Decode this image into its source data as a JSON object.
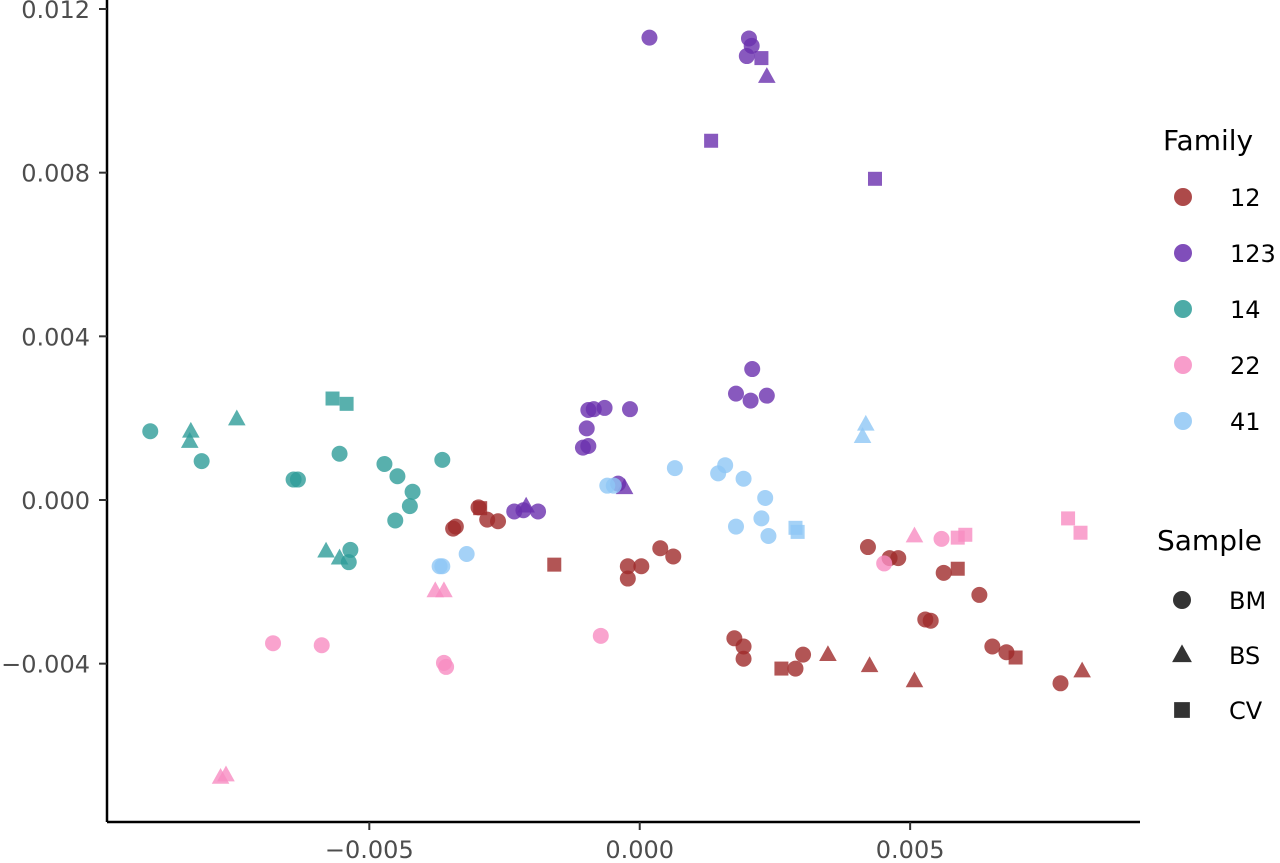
{
  "chart_data": {
    "type": "scatter",
    "title": "",
    "xlabel": "",
    "ylabel": "",
    "xlim": [
      -0.00985,
      0.00925
    ],
    "ylim": [
      -0.00787,
      0.01222
    ],
    "x_ticks": [
      -0.005,
      0.0,
      0.005
    ],
    "x_tick_labels": [
      "−0.005",
      "0.000",
      "0.005"
    ],
    "y_ticks": [
      -0.004,
      0.0,
      0.004,
      0.008,
      0.012
    ],
    "y_tick_labels": [
      "−0.004",
      "0.000",
      "0.004",
      "0.008",
      "0.012"
    ],
    "grid": false,
    "legend_position": "right",
    "legends": {
      "family": {
        "title": "Family",
        "items": [
          {
            "label": "12",
            "color": "#9f2a2a"
          },
          {
            "label": "123",
            "color": "#6a2fae"
          },
          {
            "label": "14",
            "color": "#2e9c98"
          },
          {
            "label": "22",
            "color": "#f78cc2"
          },
          {
            "label": "41",
            "color": "#8fc7f5"
          }
        ]
      },
      "sample": {
        "title": "Sample",
        "items": [
          {
            "label": "BM",
            "shape": "circle"
          },
          {
            "label": "BS",
            "shape": "triangle"
          },
          {
            "label": "CV",
            "shape": "square"
          }
        ]
      }
    },
    "points": [
      {
        "x": -0.00905,
        "y": 0.00168,
        "family": "14",
        "sample": "BM"
      },
      {
        "x": -0.0081,
        "y": 0.00095,
        "family": "14",
        "sample": "BM"
      },
      {
        "x": -0.0064,
        "y": 0.0005,
        "family": "14",
        "sample": "BM"
      },
      {
        "x": -0.00632,
        "y": 0.0005,
        "family": "14",
        "sample": "BM"
      },
      {
        "x": -0.00555,
        "y": 0.00113,
        "family": "14",
        "sample": "BM"
      },
      {
        "x": -0.00472,
        "y": 0.00088,
        "family": "14",
        "sample": "BM"
      },
      {
        "x": -0.00448,
        "y": 0.00058,
        "family": "14",
        "sample": "BM"
      },
      {
        "x": -0.0042,
        "y": 0.0002,
        "family": "14",
        "sample": "BM"
      },
      {
        "x": -0.00425,
        "y": -0.00015,
        "family": "14",
        "sample": "BM"
      },
      {
        "x": -0.00452,
        "y": -0.0005,
        "family": "14",
        "sample": "BM"
      },
      {
        "x": -0.00365,
        "y": 0.00098,
        "family": "14",
        "sample": "BM"
      },
      {
        "x": -0.00535,
        "y": -0.00122,
        "family": "14",
        "sample": "BM"
      },
      {
        "x": -0.00538,
        "y": -0.00152,
        "family": "14",
        "sample": "BM"
      },
      {
        "x": -0.0083,
        "y": 0.00168,
        "family": "14",
        "sample": "BS"
      },
      {
        "x": -0.00832,
        "y": 0.00143,
        "family": "14",
        "sample": "BS"
      },
      {
        "x": -0.00745,
        "y": 0.00198,
        "family": "14",
        "sample": "BS"
      },
      {
        "x": -0.0058,
        "y": -0.00125,
        "family": "14",
        "sample": "BS"
      },
      {
        "x": -0.00555,
        "y": -0.00142,
        "family": "14",
        "sample": "BS"
      },
      {
        "x": -0.00568,
        "y": 0.00248,
        "family": "14",
        "sample": "CV"
      },
      {
        "x": -0.00542,
        "y": 0.00235,
        "family": "14",
        "sample": "CV"
      },
      {
        "x": 0.00018,
        "y": 0.0113,
        "family": "123",
        "sample": "BM"
      },
      {
        "x": 0.00202,
        "y": 0.01128,
        "family": "123",
        "sample": "BM"
      },
      {
        "x": 0.00207,
        "y": 0.0111,
        "family": "123",
        "sample": "BM"
      },
      {
        "x": 0.00198,
        "y": 0.01085,
        "family": "123",
        "sample": "BM"
      },
      {
        "x": -0.00095,
        "y": 0.0022,
        "family": "123",
        "sample": "BM"
      },
      {
        "x": -0.00085,
        "y": 0.00222,
        "family": "123",
        "sample": "BM"
      },
      {
        "x": -0.00065,
        "y": 0.00225,
        "family": "123",
        "sample": "BM"
      },
      {
        "x": -0.00018,
        "y": 0.00222,
        "family": "123",
        "sample": "BM"
      },
      {
        "x": -0.00098,
        "y": 0.00175,
        "family": "123",
        "sample": "BM"
      },
      {
        "x": -0.00105,
        "y": 0.00128,
        "family": "123",
        "sample": "BM"
      },
      {
        "x": -0.00095,
        "y": 0.00132,
        "family": "123",
        "sample": "BM"
      },
      {
        "x": 0.00178,
        "y": 0.0026,
        "family": "123",
        "sample": "BM"
      },
      {
        "x": 0.00208,
        "y": 0.0032,
        "family": "123",
        "sample": "BM"
      },
      {
        "x": 0.00205,
        "y": 0.00243,
        "family": "123",
        "sample": "BM"
      },
      {
        "x": 0.00235,
        "y": 0.00255,
        "family": "123",
        "sample": "BM"
      },
      {
        "x": -0.00232,
        "y": -0.00028,
        "family": "123",
        "sample": "BM"
      },
      {
        "x": -0.00215,
        "y": -0.00025,
        "family": "123",
        "sample": "BM"
      },
      {
        "x": -0.00188,
        "y": -0.00028,
        "family": "123",
        "sample": "BM"
      },
      {
        "x": -0.0004,
        "y": 0.0004,
        "family": "123",
        "sample": "BM"
      },
      {
        "x": 0.00235,
        "y": 0.01035,
        "family": "123",
        "sample": "BS"
      },
      {
        "x": -0.0021,
        "y": -0.00015,
        "family": "123",
        "sample": "BS"
      },
      {
        "x": -0.00028,
        "y": 0.0003,
        "family": "123",
        "sample": "BS"
      },
      {
        "x": 0.00225,
        "y": 0.0108,
        "family": "123",
        "sample": "CV"
      },
      {
        "x": 0.00132,
        "y": 0.00878,
        "family": "123",
        "sample": "CV"
      },
      {
        "x": 0.00435,
        "y": 0.00785,
        "family": "123",
        "sample": "CV"
      },
      {
        "x": -0.0034,
        "y": -0.00065,
        "family": "12",
        "sample": "BM"
      },
      {
        "x": -0.00345,
        "y": -0.0007,
        "family": "12",
        "sample": "BM"
      },
      {
        "x": -0.00298,
        "y": -0.00018,
        "family": "12",
        "sample": "BM"
      },
      {
        "x": -0.00282,
        "y": -0.00048,
        "family": "12",
        "sample": "BM"
      },
      {
        "x": -0.00262,
        "y": -0.00052,
        "family": "12",
        "sample": "BM"
      },
      {
        "x": -0.00022,
        "y": -0.00162,
        "family": "12",
        "sample": "BM"
      },
      {
        "x": -0.00022,
        "y": -0.00192,
        "family": "12",
        "sample": "BM"
      },
      {
        "x": 3e-05,
        "y": -0.00162,
        "family": "12",
        "sample": "BM"
      },
      {
        "x": 0.00038,
        "y": -0.00118,
        "family": "12",
        "sample": "BM"
      },
      {
        "x": 0.00062,
        "y": -0.00138,
        "family": "12",
        "sample": "BM"
      },
      {
        "x": 0.00175,
        "y": -0.00338,
        "family": "12",
        "sample": "BM"
      },
      {
        "x": 0.00192,
        "y": -0.00358,
        "family": "12",
        "sample": "BM"
      },
      {
        "x": 0.00192,
        "y": -0.00388,
        "family": "12",
        "sample": "BM"
      },
      {
        "x": 0.00288,
        "y": -0.00412,
        "family": "12",
        "sample": "BM"
      },
      {
        "x": 0.00302,
        "y": -0.00378,
        "family": "12",
        "sample": "BM"
      },
      {
        "x": 0.00422,
        "y": -0.00115,
        "family": "12",
        "sample": "BM"
      },
      {
        "x": 0.00462,
        "y": -0.00142,
        "family": "12",
        "sample": "BM"
      },
      {
        "x": 0.00478,
        "y": -0.00142,
        "family": "12",
        "sample": "BM"
      },
      {
        "x": 0.00528,
        "y": -0.00292,
        "family": "12",
        "sample": "BM"
      },
      {
        "x": 0.00538,
        "y": -0.00295,
        "family": "12",
        "sample": "BM"
      },
      {
        "x": 0.00562,
        "y": -0.00178,
        "family": "12",
        "sample": "BM"
      },
      {
        "x": 0.00628,
        "y": -0.00232,
        "family": "12",
        "sample": "BM"
      },
      {
        "x": 0.00652,
        "y": -0.00358,
        "family": "12",
        "sample": "BM"
      },
      {
        "x": 0.00678,
        "y": -0.00372,
        "family": "12",
        "sample": "BM"
      },
      {
        "x": 0.00778,
        "y": -0.00448,
        "family": "12",
        "sample": "BM"
      },
      {
        "x": 0.00348,
        "y": -0.00378,
        "family": "12",
        "sample": "BS"
      },
      {
        "x": 0.00425,
        "y": -0.00405,
        "family": "12",
        "sample": "BS"
      },
      {
        "x": 0.00508,
        "y": -0.00442,
        "family": "12",
        "sample": "BS"
      },
      {
        "x": 0.00818,
        "y": -0.00418,
        "family": "12",
        "sample": "BS"
      },
      {
        "x": -0.00295,
        "y": -0.0002,
        "family": "12",
        "sample": "CV"
      },
      {
        "x": -0.00158,
        "y": -0.00158,
        "family": "12",
        "sample": "CV"
      },
      {
        "x": 0.00262,
        "y": -0.00412,
        "family": "12",
        "sample": "CV"
      },
      {
        "x": 0.00588,
        "y": -0.00168,
        "family": "12",
        "sample": "CV"
      },
      {
        "x": 0.00695,
        "y": -0.00385,
        "family": "12",
        "sample": "CV"
      },
      {
        "x": -0.00678,
        "y": -0.0035,
        "family": "22",
        "sample": "BM"
      },
      {
        "x": -0.00588,
        "y": -0.00355,
        "family": "22",
        "sample": "BM"
      },
      {
        "x": -0.00358,
        "y": -0.00408,
        "family": "22",
        "sample": "BM"
      },
      {
        "x": -0.00362,
        "y": -0.00398,
        "family": "22",
        "sample": "BM"
      },
      {
        "x": -0.00072,
        "y": -0.00332,
        "family": "22",
        "sample": "BM"
      },
      {
        "x": 0.00452,
        "y": -0.00155,
        "family": "22",
        "sample": "BM"
      },
      {
        "x": 0.00558,
        "y": -0.00095,
        "family": "22",
        "sample": "BM"
      },
      {
        "x": -0.00775,
        "y": -0.00678,
        "family": "22",
        "sample": "BS"
      },
      {
        "x": -0.00765,
        "y": -0.00672,
        "family": "22",
        "sample": "BS"
      },
      {
        "x": -0.00378,
        "y": -0.00222,
        "family": "22",
        "sample": "BS"
      },
      {
        "x": -0.00362,
        "y": -0.00222,
        "family": "22",
        "sample": "BS"
      },
      {
        "x": 0.00508,
        "y": -0.00088,
        "family": "22",
        "sample": "BS"
      },
      {
        "x": 0.00588,
        "y": -0.00092,
        "family": "22",
        "sample": "CV"
      },
      {
        "x": 0.00602,
        "y": -0.00085,
        "family": "22",
        "sample": "CV"
      },
      {
        "x": 0.00792,
        "y": -0.00045,
        "family": "22",
        "sample": "CV"
      },
      {
        "x": 0.00815,
        "y": -0.0008,
        "family": "22",
        "sample": "CV"
      },
      {
        "x": -0.0037,
        "y": -0.00162,
        "family": "41",
        "sample": "BM"
      },
      {
        "x": -0.00365,
        "y": -0.00162,
        "family": "41",
        "sample": "BM"
      },
      {
        "x": -0.0032,
        "y": -0.00132,
        "family": "41",
        "sample": "BM"
      },
      {
        "x": -0.0006,
        "y": 0.00035,
        "family": "41",
        "sample": "BM"
      },
      {
        "x": -0.00048,
        "y": 0.00035,
        "family": "41",
        "sample": "BM"
      },
      {
        "x": 0.00065,
        "y": 0.00078,
        "family": "41",
        "sample": "BM"
      },
      {
        "x": 0.00145,
        "y": 0.00065,
        "family": "41",
        "sample": "BM"
      },
      {
        "x": 0.00158,
        "y": 0.00085,
        "family": "41",
        "sample": "BM"
      },
      {
        "x": 0.00192,
        "y": 0.00052,
        "family": "41",
        "sample": "BM"
      },
      {
        "x": 0.00232,
        "y": 5e-05,
        "family": "41",
        "sample": "BM"
      },
      {
        "x": 0.00225,
        "y": -0.00045,
        "family": "41",
        "sample": "BM"
      },
      {
        "x": 0.00178,
        "y": -0.00065,
        "family": "41",
        "sample": "BM"
      },
      {
        "x": 0.00238,
        "y": -0.00088,
        "family": "41",
        "sample": "BM"
      },
      {
        "x": 0.00418,
        "y": 0.00185,
        "family": "41",
        "sample": "BS"
      },
      {
        "x": 0.00412,
        "y": 0.00155,
        "family": "41",
        "sample": "BS"
      },
      {
        "x": 0.00288,
        "y": -0.00068,
        "family": "41",
        "sample": "CV"
      },
      {
        "x": 0.00292,
        "y": -0.00078,
        "family": "41",
        "sample": "CV"
      }
    ]
  }
}
